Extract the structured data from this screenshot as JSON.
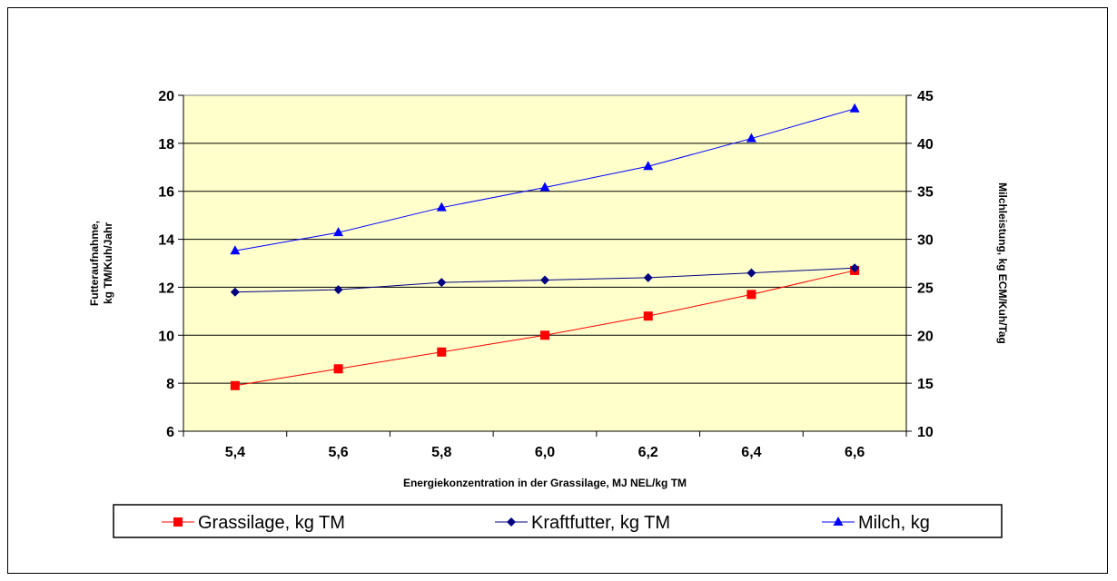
{
  "chart_data": {
    "type": "line",
    "xlabel": "Energiekonzentration in der Grassilage, MJ NEL/kg TM",
    "ylabel_left": [
      "Futteraufnahme,",
      "kg TM/Kuh/Jahr"
    ],
    "ylabel_right": "Milchleistung,  kg ECM/Kuh/Tag",
    "x": [
      5.4,
      5.6,
      5.8,
      6.0,
      6.2,
      6.4,
      6.6
    ],
    "x_tick_labels": [
      "5,4",
      "5,6",
      "5,8",
      "6,0",
      "6,2",
      "6,4",
      "6,6"
    ],
    "ylim_left": [
      6,
      20
    ],
    "ylim_right": [
      10,
      45
    ],
    "y_ticks_left": [
      "6",
      "8",
      "10",
      "12",
      "14",
      "16",
      "18",
      "20"
    ],
    "y_ticks_right": [
      "10",
      "15",
      "20",
      "25",
      "30",
      "35",
      "40",
      "45"
    ],
    "grid": true,
    "plot_background": "#FFFFCC",
    "legend_position": "bottom",
    "series": [
      {
        "name": "Grassilage, kg TM",
        "axis": "left",
        "color": "#FF0000",
        "marker": "square",
        "values": [
          7.9,
          8.6,
          9.3,
          10.0,
          10.8,
          11.7,
          12.7
        ]
      },
      {
        "name": "Kraftfutter, kg TM",
        "axis": "left",
        "color": "#000080",
        "marker": "diamond",
        "values": [
          11.8,
          11.9,
          12.2,
          12.3,
          12.4,
          12.6,
          12.8
        ]
      },
      {
        "name": "Milch, kg",
        "axis": "right",
        "color": "#0000FF",
        "marker": "triangle",
        "values": [
          28.8,
          30.7,
          33.3,
          35.4,
          37.6,
          40.5,
          43.6
        ]
      }
    ]
  }
}
